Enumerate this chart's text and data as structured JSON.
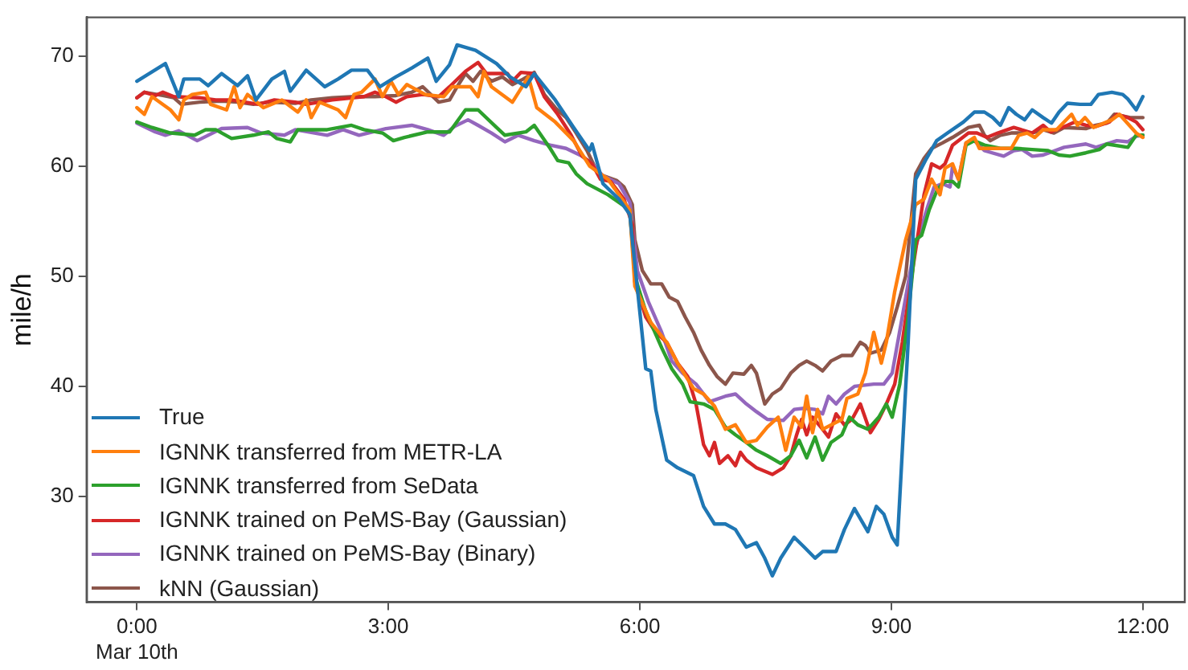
{
  "chart_data": {
    "type": "line",
    "ylabel": "mile/h",
    "xlim": [
      -0.6,
      12.5
    ],
    "ylim": [
      20.4,
      73.5
    ],
    "xticks": [
      {
        "value": 0,
        "label": "0:00\nMar 10th"
      },
      {
        "value": 3,
        "label": "3:00"
      },
      {
        "value": 6,
        "label": "6:00"
      },
      {
        "value": 9,
        "label": "9:00"
      },
      {
        "value": 12,
        "label": "12:00"
      }
    ],
    "yticks": [
      30,
      40,
      50,
      60,
      70
    ],
    "grid": false,
    "legend": "bottom left",
    "line_style": "solid",
    "series": [
      {
        "name": "True",
        "color": "#1f77b4",
        "x": [
          0,
          0.34,
          0.5,
          0.56,
          0.75,
          0.85,
          1.01,
          1.2,
          1.32,
          1.42,
          1.61,
          1.76,
          1.83,
          2.02,
          2.24,
          2.4,
          2.56,
          2.75,
          2.9,
          3.09,
          3.28,
          3.47,
          3.57,
          3.73,
          3.82,
          4.04,
          4.29,
          4.45,
          4.64,
          4.74,
          4.99,
          5.21,
          5.4,
          5.43,
          5.56,
          5.75,
          5.88,
          5.91,
          6.07,
          6.13,
          6.19,
          6.32,
          6.45,
          6.64,
          6.76,
          6.89,
          7.02,
          7.14,
          7.27,
          7.39,
          7.49,
          7.58,
          7.68,
          7.84,
          7.96,
          8.09,
          8.18,
          8.34,
          8.44,
          8.56,
          8.72,
          8.82,
          8.91,
          9.01,
          9.07,
          9.2,
          9.29,
          9.42,
          9.54,
          9.67,
          9.86,
          9.99,
          10.11,
          10.21,
          10.3,
          10.4,
          10.49,
          10.59,
          10.68,
          10.81,
          10.91,
          11,
          11.1,
          11.25,
          11.38,
          11.47,
          11.63,
          11.76,
          11.82,
          11.92,
          12
        ],
        "values": [
          67.7,
          69.3,
          66.3,
          67.9,
          67.9,
          67.3,
          68.4,
          67.3,
          68.2,
          66.0,
          67.9,
          68.6,
          66.8,
          68.7,
          67.2,
          67.9,
          68.7,
          68.7,
          67.2,
          68.1,
          68.9,
          69.8,
          67.7,
          69.2,
          71.0,
          70.5,
          69.3,
          68.1,
          67.2,
          68.4,
          66.0,
          63.5,
          61.4,
          62.0,
          58.4,
          57.0,
          55.6,
          53.3,
          41.6,
          41.4,
          37.9,
          33.3,
          32.6,
          31.9,
          29.1,
          27.5,
          27.5,
          27.0,
          25.4,
          25.8,
          24.4,
          22.8,
          24.4,
          26.3,
          25.4,
          24.4,
          25.0,
          25.0,
          27.0,
          28.9,
          26.8,
          29.1,
          28.4,
          26.3,
          25.6,
          44.0,
          58.8,
          60.7,
          62.3,
          63.0,
          64.0,
          64.9,
          64.9,
          64.4,
          63.7,
          65.3,
          64.7,
          64.2,
          65.1,
          64.4,
          63.9,
          64.9,
          65.7,
          65.6,
          65.6,
          66.5,
          66.7,
          66.5,
          66.1,
          65.1,
          66.3
        ]
      },
      {
        "name": "IGNNK transferred from METR-LA",
        "color": "#ff7f0e",
        "x": [
          0,
          0.09,
          0.18,
          0.4,
          0.5,
          0.56,
          0.66,
          0.82,
          0.88,
          1.07,
          1.16,
          1.23,
          1.32,
          1.51,
          1.73,
          1.92,
          2.02,
          2.08,
          2.18,
          2.4,
          2.49,
          2.59,
          2.68,
          2.84,
          2.93,
          3.03,
          3.12,
          3.22,
          3.44,
          3.66,
          3.76,
          3.98,
          4.07,
          4.14,
          4.23,
          4.48,
          4.67,
          4.77,
          4.99,
          5.21,
          5.4,
          5.62,
          5.88,
          5.94,
          6.13,
          6.32,
          6.45,
          6.64,
          6.76,
          6.89,
          7.02,
          7.14,
          7.27,
          7.39,
          7.52,
          7.65,
          7.74,
          7.84,
          7.93,
          7.99,
          8.06,
          8.12,
          8.18,
          8.41,
          8.47,
          8.6,
          8.69,
          8.79,
          8.88,
          8.94,
          9.04,
          9.17,
          9.29,
          9.39,
          9.48,
          9.58,
          9.64,
          9.73,
          9.8,
          9.89,
          9.99,
          10.05,
          10.24,
          10.43,
          10.52,
          10.62,
          10.71,
          10.81,
          10.97,
          11.15,
          11.22,
          11.31,
          11.41,
          11.63,
          11.72,
          11.92,
          12
        ],
        "values": [
          65.3,
          64.7,
          66.3,
          65.1,
          64.2,
          66.0,
          66.5,
          66.7,
          65.6,
          65.1,
          67.2,
          65.3,
          66.5,
          65.3,
          66.0,
          64.9,
          66.0,
          64.4,
          65.8,
          65.1,
          64.4,
          66.5,
          66.7,
          67.9,
          66.3,
          67.7,
          66.5,
          67.4,
          66.5,
          66.3,
          67.2,
          67.2,
          66.3,
          68.6,
          67.2,
          65.8,
          68.1,
          65.3,
          64.0,
          62.3,
          60.0,
          58.8,
          56.0,
          49.1,
          45.8,
          44.0,
          42.1,
          39.8,
          39.3,
          38.2,
          36.1,
          36.5,
          34.9,
          35.1,
          36.3,
          37.2,
          34.2,
          37.2,
          36.3,
          39.1,
          35.8,
          37.9,
          36.1,
          37.0,
          38.9,
          39.3,
          41.2,
          44.9,
          42.1,
          44.0,
          48.6,
          53.3,
          56.5,
          57.0,
          58.8,
          57.4,
          59.8,
          60.2,
          58.8,
          62.1,
          62.6,
          61.6,
          61.6,
          61.6,
          62.8,
          63.0,
          62.6,
          63.3,
          63.3,
          64.7,
          63.7,
          64.4,
          63.5,
          64.2,
          64.7,
          63.0,
          62.6
        ]
      },
      {
        "name": "IGNNK transferred from SeData",
        "color": "#2ca02c",
        "x": [
          0,
          0.18,
          0.4,
          0.69,
          0.82,
          0.94,
          1.13,
          1.39,
          1.57,
          1.67,
          1.83,
          1.92,
          2.27,
          2.56,
          2.71,
          2.93,
          3.06,
          3.19,
          3.47,
          3.73,
          3.92,
          4.07,
          4.29,
          4.39,
          4.64,
          4.74,
          4.93,
          5.02,
          5.15,
          5.24,
          5.37,
          5.62,
          5.88,
          5.94,
          6.07,
          6.26,
          6.38,
          6.51,
          6.6,
          6.76,
          6.89,
          7.02,
          7.14,
          7.27,
          7.39,
          7.52,
          7.68,
          7.8,
          7.9,
          7.99,
          8.09,
          8.18,
          8.28,
          8.41,
          8.5,
          8.6,
          8.72,
          8.85,
          8.94,
          9.01,
          9.1,
          9.2,
          9.29,
          9.36,
          9.45,
          9.55,
          9.64,
          9.73,
          9.8,
          9.89,
          9.99,
          10.11,
          10.3,
          10.49,
          10.68,
          10.87,
          11,
          11.13,
          11.32,
          11.48,
          11.57,
          11.82,
          11.92,
          12
        ],
        "values": [
          64.0,
          63.5,
          63.0,
          62.8,
          63.3,
          63.3,
          62.5,
          62.8,
          63.1,
          62.5,
          62.2,
          63.3,
          63.3,
          63.7,
          63.3,
          63.0,
          62.3,
          62.6,
          63.1,
          63.1,
          65.1,
          65.1,
          63.5,
          62.8,
          63.1,
          63.7,
          61.6,
          60.5,
          60.3,
          59.3,
          58.4,
          57.4,
          56.0,
          50.0,
          46.8,
          43.5,
          41.6,
          40.2,
          38.6,
          38.4,
          37.9,
          36.3,
          35.6,
          34.9,
          34.2,
          33.7,
          33.0,
          33.7,
          35.1,
          33.5,
          35.4,
          33.3,
          34.9,
          35.6,
          37.2,
          36.5,
          36.1,
          37.2,
          38.4,
          37.2,
          40.2,
          46.3,
          53.3,
          53.7,
          56.0,
          57.9,
          58.6,
          58.6,
          58.1,
          61.9,
          62.3,
          61.9,
          61.6,
          61.6,
          61.5,
          61.4,
          61.0,
          60.9,
          61.2,
          61.5,
          62.0,
          61.7,
          62.8,
          62.8
        ]
      },
      {
        "name": "IGNNK trained on PeMS-Bay (Gaussian)",
        "color": "#d62728",
        "x": [
          0,
          0.09,
          0.22,
          0.31,
          0.44,
          0.75,
          0.94,
          1.13,
          1.45,
          1.64,
          1.89,
          2.02,
          2.33,
          2.71,
          2.84,
          2.97,
          3.09,
          3.22,
          3.41,
          3.6,
          3.73,
          3.92,
          4.07,
          4.17,
          4.42,
          4.48,
          4.58,
          4.74,
          4.86,
          5.02,
          5.18,
          5.31,
          5.43,
          5.53,
          5.65,
          5.81,
          5.91,
          5.94,
          6.07,
          6.19,
          6.32,
          6.45,
          6.57,
          6.67,
          6.76,
          6.83,
          6.89,
          6.95,
          7.05,
          7.14,
          7.2,
          7.27,
          7.39,
          7.58,
          7.71,
          7.8,
          7.87,
          7.93,
          7.99,
          8.06,
          8.18,
          8.25,
          8.34,
          8.44,
          8.53,
          8.63,
          8.75,
          8.85,
          8.94,
          9.04,
          9.13,
          9.26,
          9.39,
          9.48,
          9.58,
          9.64,
          9.73,
          9.92,
          10.02,
          10.14,
          10.27,
          10.46,
          10.68,
          10.81,
          10.9,
          11.1,
          11.19,
          11.32,
          11.44,
          11.6,
          11.69,
          11.82,
          11.92,
          12
        ],
        "values": [
          66.2,
          66.7,
          66.4,
          66.7,
          66.3,
          66.2,
          66.0,
          66.0,
          65.6,
          66.0,
          65.8,
          65.6,
          66.0,
          66.3,
          66.7,
          66.3,
          65.8,
          66.3,
          66.5,
          66.3,
          67.2,
          68.6,
          69.4,
          68.4,
          68.4,
          67.7,
          68.5,
          68.4,
          66.3,
          64.7,
          62.8,
          60.9,
          60.2,
          58.8,
          58.6,
          57.0,
          54.7,
          49.5,
          46.3,
          44.9,
          44.0,
          42.1,
          40.9,
          38.4,
          34.7,
          33.7,
          34.9,
          33.0,
          33.7,
          32.8,
          34.0,
          33.3,
          32.6,
          32.0,
          32.6,
          33.7,
          35.6,
          37.0,
          35.6,
          37.2,
          36.1,
          35.4,
          37.5,
          36.5,
          37.0,
          38.4,
          35.8,
          37.0,
          38.4,
          40.2,
          44.0,
          50.9,
          57.4,
          60.2,
          59.8,
          60.2,
          61.9,
          63.0,
          63.0,
          62.6,
          63.0,
          63.5,
          63.0,
          63.7,
          63.1,
          63.7,
          64.0,
          63.7,
          63.6,
          64.0,
          64.7,
          64.4,
          64.0,
          63.3
        ]
      },
      {
        "name": "IGNNK trained on PeMS-Bay (Binary)",
        "color": "#9467bd",
        "x": [
          0,
          0.22,
          0.34,
          0.5,
          0.72,
          1.01,
          1.32,
          1.48,
          1.76,
          1.89,
          2.27,
          2.46,
          2.65,
          2.97,
          3.28,
          3.47,
          3.66,
          3.79,
          3.95,
          4.07,
          4.23,
          4.39,
          4.55,
          4.74,
          4.93,
          5.12,
          5.31,
          5.43,
          5.56,
          5.75,
          5.88,
          5.97,
          6.1,
          6.26,
          6.38,
          6.51,
          6.67,
          6.83,
          7.02,
          7.14,
          7.27,
          7.39,
          7.52,
          7.71,
          7.84,
          7.96,
          8.09,
          8.18,
          8.25,
          8.34,
          8.44,
          8.56,
          8.79,
          8.91,
          9.01,
          9.13,
          9.26,
          9.42,
          9.51,
          9.61,
          9.7,
          9.73,
          9.8,
          9.89,
          9.99,
          10.11,
          10.34,
          10.46,
          10.56,
          10.68,
          10.81,
          11.06,
          11.32,
          11.44,
          11.69,
          11.82,
          11.92,
          12
        ],
        "values": [
          63.9,
          63.1,
          62.8,
          63.2,
          62.3,
          63.4,
          63.5,
          63.0,
          62.8,
          63.3,
          62.8,
          63.3,
          62.8,
          63.4,
          63.7,
          63.3,
          62.8,
          63.6,
          64.2,
          63.7,
          63.0,
          62.2,
          62.8,
          62.3,
          61.9,
          61.6,
          60.9,
          60.2,
          59.1,
          58.4,
          56.7,
          50.5,
          47.7,
          44.9,
          42.3,
          41.2,
          40.2,
          38.6,
          39.1,
          39.3,
          38.4,
          37.7,
          37.0,
          36.9,
          37.9,
          38.0,
          37.9,
          37.5,
          39.1,
          38.4,
          39.3,
          40.0,
          40.2,
          40.2,
          41.2,
          46.3,
          51.9,
          56.0,
          58.1,
          58.4,
          58.1,
          60.0,
          58.8,
          62.1,
          62.3,
          61.4,
          60.9,
          61.4,
          61.5,
          60.9,
          61.0,
          61.7,
          62.0,
          61.7,
          62.3,
          62.2,
          62.7,
          62.8
        ]
      },
      {
        "name": "kNN (Gaussian)",
        "color": "#8c564b",
        "x": [
          0,
          0.09,
          0.31,
          0.44,
          0.53,
          0.75,
          1.01,
          1.2,
          1.39,
          1.57,
          1.89,
          2.08,
          2.33,
          2.59,
          2.84,
          3.09,
          3.28,
          3.41,
          3.6,
          3.73,
          3.82,
          3.92,
          4.01,
          4.1,
          4.23,
          4.36,
          4.48,
          4.61,
          4.74,
          4.86,
          4.99,
          5.12,
          5.24,
          5.37,
          5.5,
          5.72,
          5.81,
          5.91,
          5.94,
          6.03,
          6.13,
          6.26,
          6.35,
          6.45,
          6.54,
          6.64,
          6.73,
          6.83,
          6.92,
          7.02,
          7.11,
          7.24,
          7.33,
          7.39,
          7.49,
          7.58,
          7.68,
          7.8,
          7.9,
          7.99,
          8.09,
          8.18,
          8.28,
          8.41,
          8.53,
          8.63,
          8.69,
          8.75,
          8.88,
          8.98,
          9.07,
          9.17,
          9.29,
          9.39,
          9.48,
          9.61,
          9.73,
          9.92,
          10.05,
          10.11,
          10.18,
          10.3,
          10.43,
          10.68,
          10.81,
          10.94,
          11.06,
          11.32,
          11.44,
          11.57,
          11.66,
          11.85,
          12
        ],
        "values": [
          66.2,
          66.7,
          66.4,
          66.2,
          65.6,
          65.8,
          65.9,
          65.8,
          65.6,
          65.8,
          65.7,
          66.0,
          66.2,
          66.3,
          66.3,
          66.4,
          66.7,
          67.2,
          65.8,
          66.0,
          67.2,
          68.4,
          67.7,
          68.6,
          67.7,
          68.1,
          67.4,
          67.9,
          68.5,
          66.5,
          65.3,
          64.4,
          63.0,
          61.4,
          59.3,
          58.7,
          58.1,
          56.5,
          53.3,
          50.5,
          49.3,
          49.3,
          48.1,
          47.7,
          46.3,
          44.9,
          43.3,
          41.9,
          40.9,
          40.2,
          41.2,
          41.1,
          41.9,
          41.2,
          38.4,
          39.3,
          39.8,
          41.2,
          41.9,
          42.3,
          41.9,
          41.4,
          42.3,
          42.8,
          42.8,
          44.0,
          43.7,
          43.0,
          43.3,
          44.9,
          47.2,
          50.0,
          59.3,
          60.7,
          61.6,
          62.1,
          62.6,
          63.5,
          63.7,
          62.8,
          62.3,
          62.8,
          63.0,
          63.0,
          63.3,
          63.0,
          63.5,
          63.4,
          63.7,
          63.9,
          64.7,
          64.4,
          64.4
        ]
      }
    ]
  }
}
